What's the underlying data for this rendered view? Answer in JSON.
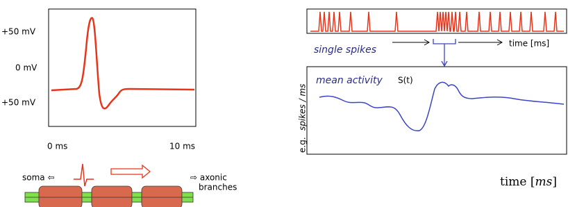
{
  "left_panel": {
    "y_labels": [
      "+50 mV",
      "0 mV",
      "+50 mV"
    ],
    "x_labels": [
      "0 ms",
      "10 ms"
    ]
  },
  "axon": {
    "soma_label": "soma ⇦",
    "axon_label_line1": "⇨ axonic",
    "axon_label_line2": "branches"
  },
  "spike_train": {
    "label": "single spikes",
    "time_label": "time [ms]"
  },
  "mean_activity": {
    "label": "mean activity",
    "symbol": "S(t)",
    "y_label_prefix": "e.g.",
    "y_label": "spikes / ms",
    "time_label_text": "time [",
    "time_label_unit": "ms",
    "time_label_close": "]"
  }
}
